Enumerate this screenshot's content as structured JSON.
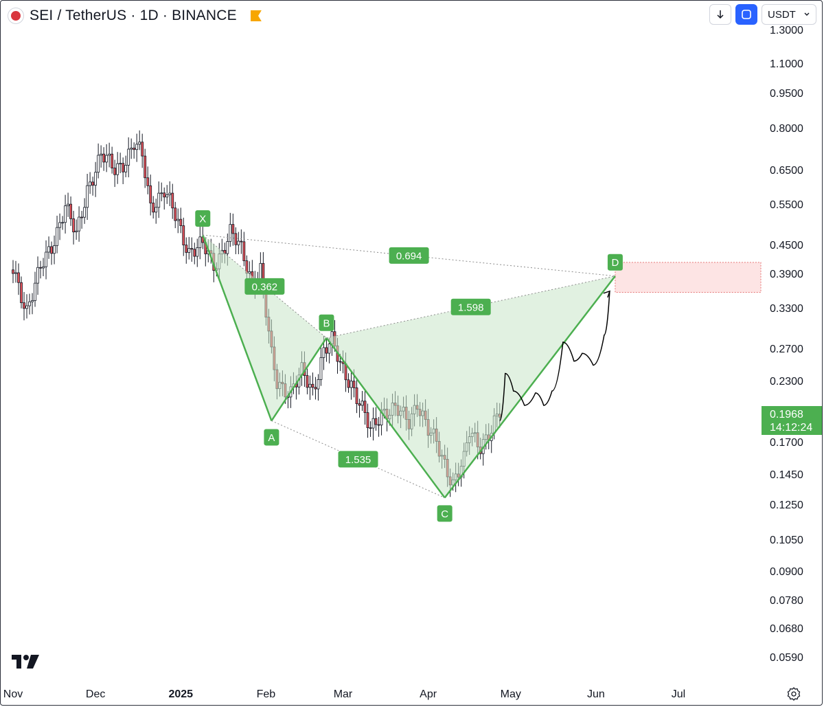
{
  "header": {
    "title": "SEI / TetherUS · 1D · BINANCE",
    "logo_icon": "sei-coin-icon",
    "flag_icon": "flag-icon"
  },
  "controls": {
    "download_icon": "arrow-down-icon",
    "sync_icon": "layout-sync-icon",
    "currency": "USDT",
    "currency_icon": "chevron-down-icon"
  },
  "last_price": {
    "value": "0.1968",
    "countdown": "14:12:24"
  },
  "colors": {
    "up": "#131722",
    "down": "#e0525a",
    "pattern": "#4caf50",
    "pattern_fill": "#c8e6c9",
    "target_zone": "#fde4e4"
  },
  "chart_data": {
    "type": "candlestick",
    "symbol": "SEI / TetherUS",
    "interval": "1D",
    "exchange": "BINANCE",
    "price_scale": "log",
    "price_ticks": [
      "1.3000",
      "1.1000",
      "0.9500",
      "0.8000",
      "0.6500",
      "0.5500",
      "0.4500",
      "0.3900",
      "0.3300",
      "0.2700",
      "0.2300",
      "0.1700",
      "0.1450",
      "0.1250",
      "0.1050",
      "0.0900",
      "0.0780",
      "0.0680",
      "0.0590"
    ],
    "time_ticks": [
      {
        "label": "Nov",
        "date": "2024-11-01"
      },
      {
        "label": "Dec",
        "date": "2024-12-01"
      },
      {
        "label": "2025",
        "date": "2025-01-01",
        "bold": true
      },
      {
        "label": "Feb",
        "date": "2025-02-01"
      },
      {
        "label": "Mar",
        "date": "2025-03-01"
      },
      {
        "label": "Apr",
        "date": "2025-04-01"
      },
      {
        "label": "May",
        "date": "2025-05-01"
      },
      {
        "label": "Jun",
        "date": "2025-06-01"
      },
      {
        "label": "Jul",
        "date": "2025-07-01"
      }
    ],
    "price_path": [
      [
        "2024-11-01",
        0.4
      ],
      [
        "2024-11-06",
        0.33
      ],
      [
        "2024-11-11",
        0.4
      ],
      [
        "2024-11-15",
        0.45
      ],
      [
        "2024-11-20",
        0.55
      ],
      [
        "2024-11-24",
        0.47
      ],
      [
        "2024-11-28",
        0.6
      ],
      [
        "2024-12-03",
        0.7
      ],
      [
        "2024-12-08",
        0.66
      ],
      [
        "2024-12-12",
        0.69
      ],
      [
        "2024-12-15",
        0.74
      ],
      [
        "2024-12-18",
        0.7
      ],
      [
        "2024-12-21",
        0.55
      ],
      [
        "2024-12-26",
        0.59
      ],
      [
        "2024-12-30",
        0.52
      ],
      [
        "2025-01-04",
        0.44
      ],
      [
        "2025-01-09",
        0.45
      ],
      [
        "2025-01-13",
        0.41
      ],
      [
        "2025-01-16",
        0.44
      ],
      [
        "2025-01-19",
        0.48
      ],
      [
        "2025-01-23",
        0.44
      ],
      [
        "2025-01-27",
        0.38
      ],
      [
        "2025-01-30",
        0.4
      ],
      [
        "2025-02-03",
        0.26
      ],
      [
        "2025-02-05",
        0.23
      ],
      [
        "2025-02-10",
        0.22
      ],
      [
        "2025-02-14",
        0.24
      ],
      [
        "2025-02-18",
        0.22
      ],
      [
        "2025-02-22",
        0.27
      ],
      [
        "2025-02-25",
        0.28
      ],
      [
        "2025-02-28",
        0.25
      ],
      [
        "2025-03-04",
        0.23
      ],
      [
        "2025-03-08",
        0.2
      ],
      [
        "2025-03-11",
        0.18
      ],
      [
        "2025-03-15",
        0.2
      ],
      [
        "2025-03-20",
        0.2
      ],
      [
        "2025-03-25",
        0.19
      ],
      [
        "2025-03-28",
        0.21
      ],
      [
        "2025-04-01",
        0.18
      ],
      [
        "2025-04-04",
        0.17
      ],
      [
        "2025-04-08",
        0.15
      ],
      [
        "2025-04-10",
        0.14
      ],
      [
        "2025-04-14",
        0.155
      ],
      [
        "2025-04-16",
        0.18
      ],
      [
        "2025-04-20",
        0.17
      ],
      [
        "2025-04-24",
        0.18
      ],
      [
        "2025-04-27",
        0.1968
      ]
    ],
    "harmonic_pattern": {
      "points": [
        {
          "label": "X",
          "date": "2025-01-09",
          "price": 0.475
        },
        {
          "label": "A",
          "date": "2025-02-03",
          "price": 0.19
        },
        {
          "label": "B",
          "date": "2025-02-23",
          "price": 0.286
        },
        {
          "label": "C",
          "date": "2025-04-07",
          "price": 0.13
        },
        {
          "label": "D",
          "date": "2025-06-08",
          "price": 0.388
        }
      ],
      "ratios": [
        {
          "label": "0.362",
          "between": "XA-AB"
        },
        {
          "label": "1.535",
          "between": "AB-BC"
        },
        {
          "label": "1.598",
          "between": "BC-CD"
        },
        {
          "label": "0.694",
          "between": "XA-AD"
        }
      ],
      "target_zone": {
        "price_top": 0.415,
        "price_bottom": 0.358
      }
    },
    "projection_path": [
      [
        "2025-04-27",
        0.19
      ],
      [
        "2025-04-29",
        0.24
      ],
      [
        "2025-05-02",
        0.22
      ],
      [
        "2025-05-06",
        0.205
      ],
      [
        "2025-05-10",
        0.218
      ],
      [
        "2025-05-13",
        0.205
      ],
      [
        "2025-05-16",
        0.22
      ],
      [
        "2025-05-20",
        0.28
      ],
      [
        "2025-05-24",
        0.255
      ],
      [
        "2025-05-27",
        0.265
      ],
      [
        "2025-05-31",
        0.25
      ],
      [
        "2025-06-04",
        0.29
      ],
      [
        "2025-06-06",
        0.36
      ]
    ]
  }
}
